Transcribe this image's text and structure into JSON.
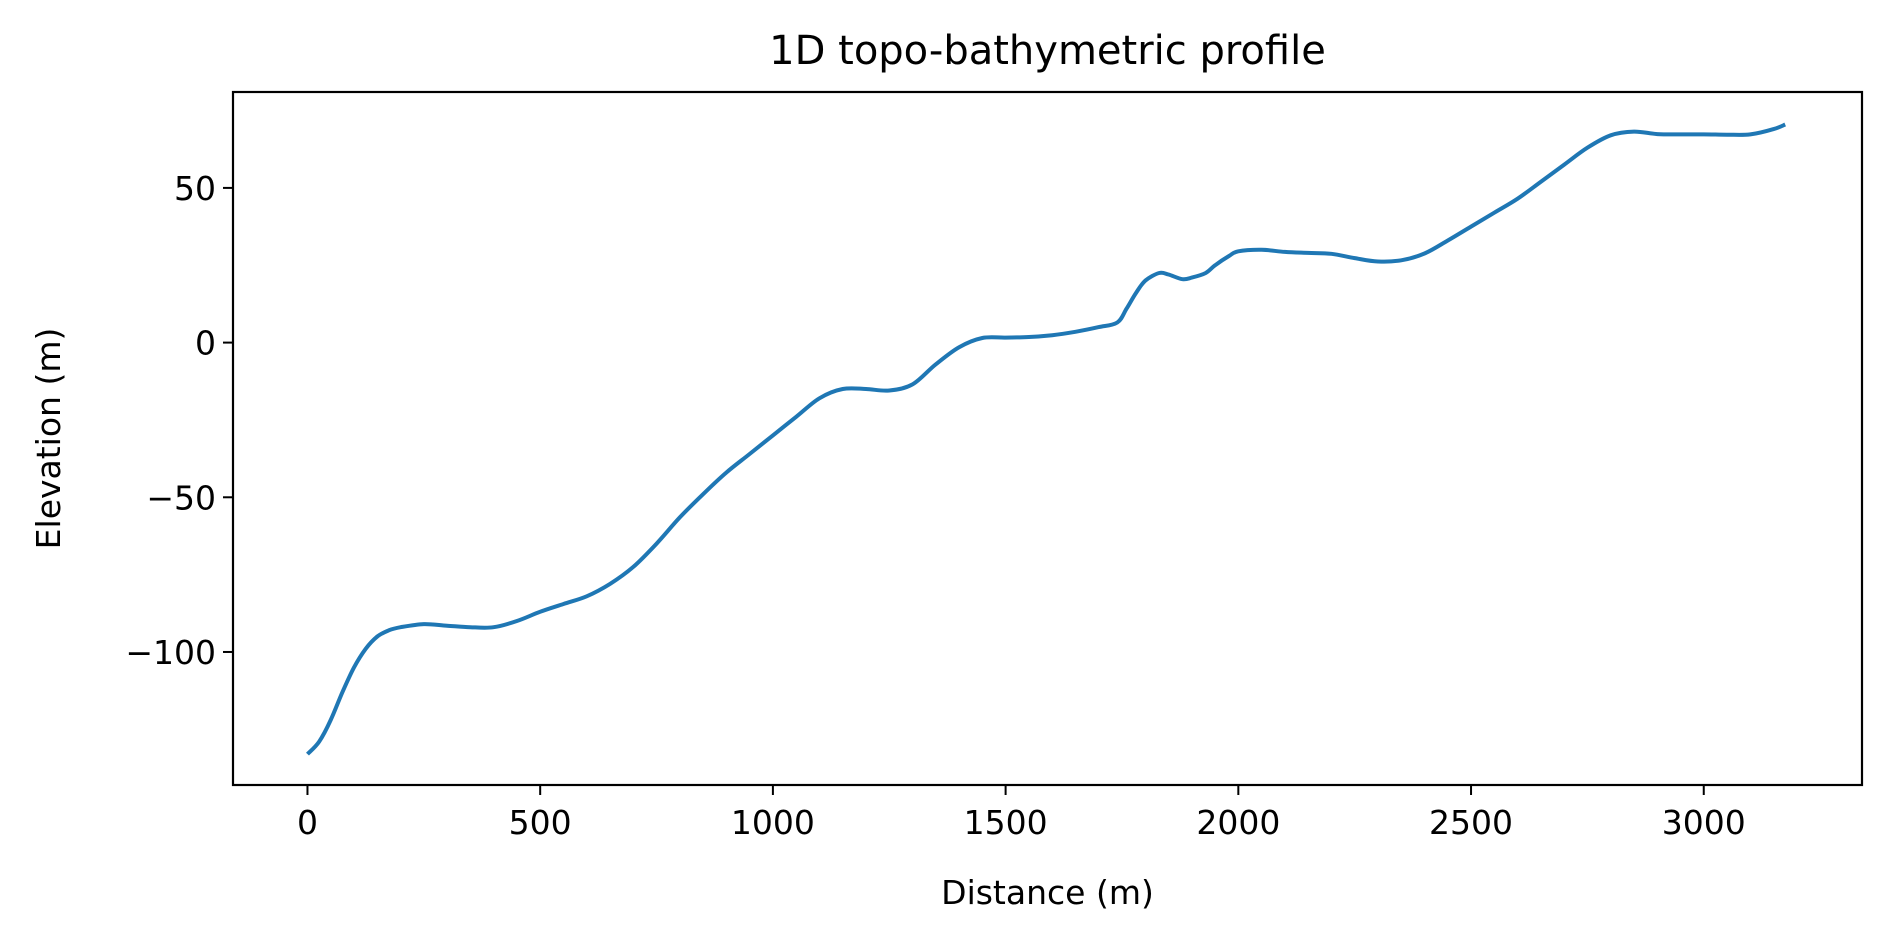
{
  "chart_data": {
    "type": "line",
    "title": "1D topo-bathymetric profile",
    "xlabel": "Distance (m)",
    "ylabel": "Elevation (m)",
    "xlim": [
      -160,
      3340
    ],
    "ylim": [
      -143,
      81
    ],
    "xticks": [
      0,
      500,
      1000,
      1500,
      2000,
      2500,
      3000
    ],
    "xtick_labels": [
      "0",
      "500",
      "1000",
      "1500",
      "2000",
      "2500",
      "3000"
    ],
    "yticks": [
      -100,
      -50,
      0,
      50
    ],
    "ytick_labels": [
      "−100",
      "−50",
      "0",
      "50"
    ],
    "grid": false,
    "legend": "none",
    "colors": {
      "series": "#1f77b4"
    },
    "series": [
      {
        "x": [
          0,
          25,
          50,
          75,
          100,
          125,
          150,
          175,
          200,
          250,
          300,
          350,
          400,
          450,
          500,
          550,
          600,
          650,
          700,
          750,
          800,
          850,
          900,
          950,
          1000,
          1050,
          1100,
          1150,
          1200,
          1250,
          1300,
          1350,
          1400,
          1450,
          1500,
          1550,
          1600,
          1650,
          1700,
          1740,
          1760,
          1780,
          1800,
          1830,
          1850,
          1880,
          1900,
          1930,
          1950,
          1980,
          2000,
          2050,
          2100,
          2150,
          2200,
          2250,
          2300,
          2350,
          2400,
          2450,
          2500,
          2550,
          2600,
          2650,
          2700,
          2750,
          2800,
          2850,
          2900,
          2950,
          3000,
          3050,
          3100,
          3150,
          3175
        ],
        "y": [
          -133,
          -129,
          -122,
          -113,
          -105,
          -99,
          -95,
          -93,
          -92,
          -91,
          -91.5,
          -92,
          -92,
          -90,
          -87,
          -84.5,
          -82,
          -78,
          -72.5,
          -65,
          -56.5,
          -49,
          -42,
          -36,
          -30,
          -24,
          -18,
          -15,
          -15,
          -15.5,
          -13.5,
          -7,
          -1.5,
          1.5,
          1.6,
          1.8,
          2.4,
          3.5,
          5,
          6.5,
          11,
          16,
          20,
          22.5,
          22,
          20.5,
          21,
          22.5,
          25,
          28,
          29.5,
          30,
          29.3,
          29,
          28.7,
          27.3,
          26.2,
          26.6,
          28.8,
          33,
          37.5,
          42,
          46.5,
          52,
          57.5,
          63,
          67,
          68.2,
          67.4,
          67.3,
          67.3,
          67.2,
          67.3,
          69,
          70.5
        ]
      }
    ]
  }
}
